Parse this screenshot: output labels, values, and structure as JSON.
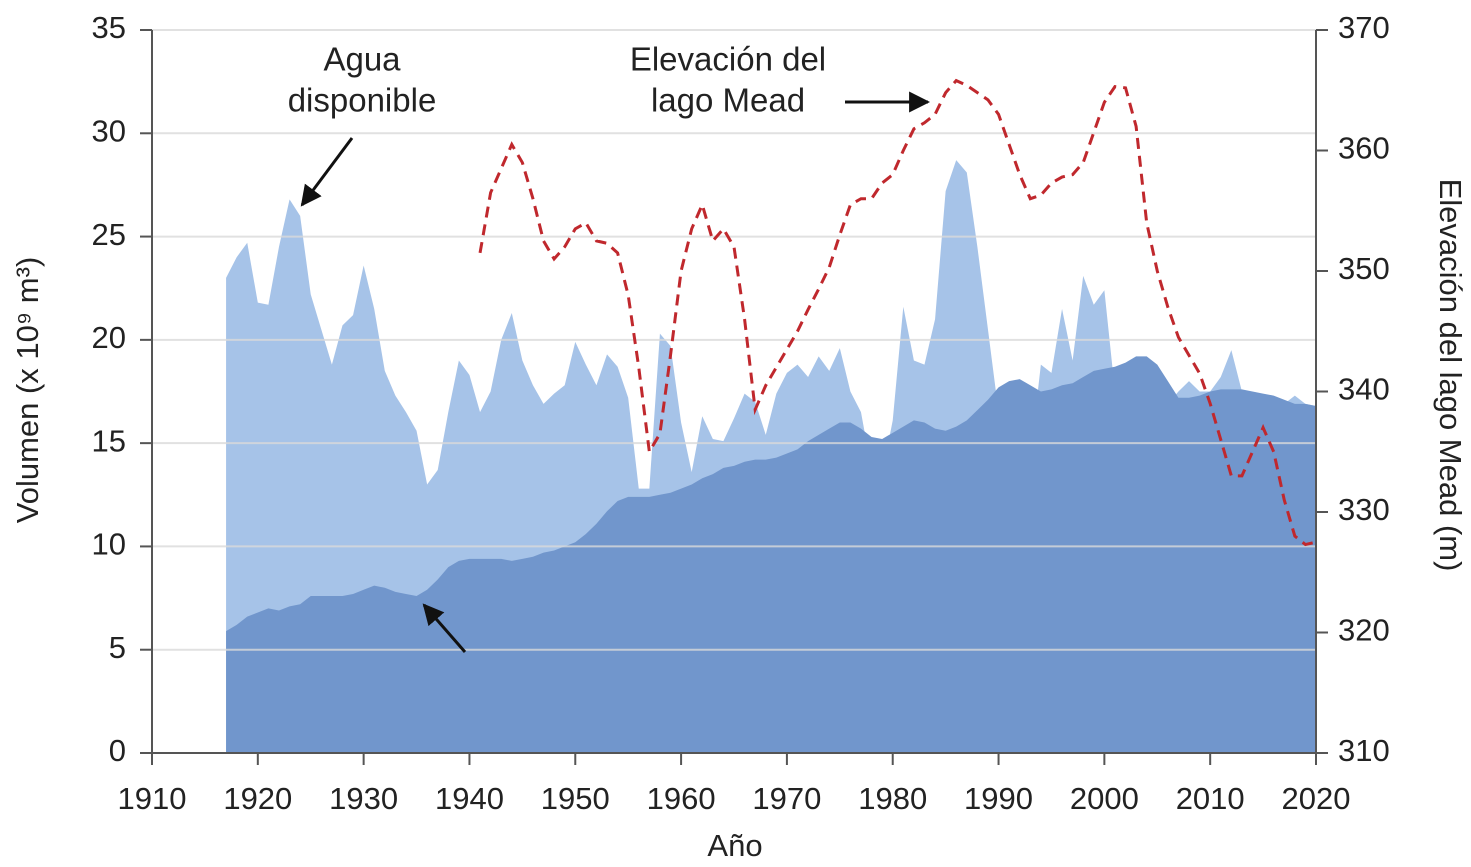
{
  "chart_data": {
    "type": "area",
    "x_label": "Año",
    "y_label": "Volumen (x 10⁹ m³)",
    "y2_label": "Elevación del lago Mead (m)",
    "annotations": [
      {
        "lines": [
          "Agua",
          "disponible"
        ]
      },
      {
        "lines": [
          "Elevación del",
          "lago Mead"
        ]
      }
    ],
    "xlim": [
      1910,
      2020
    ],
    "xticks": [
      1910,
      1920,
      1930,
      1940,
      1950,
      1960,
      1970,
      1980,
      1990,
      2000,
      2010,
      2020
    ],
    "ylim": [
      0,
      35
    ],
    "yticks": [
      0,
      5,
      10,
      15,
      20,
      25,
      30,
      35
    ],
    "y2lim": [
      310,
      370
    ],
    "y2ticks": [
      310,
      320,
      330,
      340,
      350,
      360,
      370
    ],
    "grid": true,
    "x": [
      1917,
      1918,
      1919,
      1920,
      1921,
      1922,
      1923,
      1924,
      1925,
      1926,
      1927,
      1928,
      1929,
      1930,
      1931,
      1932,
      1933,
      1934,
      1935,
      1936,
      1937,
      1938,
      1939,
      1940,
      1941,
      1942,
      1943,
      1944,
      1945,
      1946,
      1947,
      1948,
      1949,
      1950,
      1951,
      1952,
      1953,
      1954,
      1955,
      1956,
      1957,
      1958,
      1959,
      1960,
      1961,
      1962,
      1963,
      1964,
      1965,
      1966,
      1967,
      1968,
      1969,
      1970,
      1971,
      1972,
      1973,
      1974,
      1975,
      1976,
      1977,
      1978,
      1979,
      1980,
      1981,
      1982,
      1983,
      1984,
      1985,
      1986,
      1987,
      1988,
      1989,
      1990,
      1991,
      1992,
      1993,
      1994,
      1995,
      1996,
      1997,
      1998,
      1999,
      2000,
      2001,
      2002,
      2003,
      2004,
      2005,
      2006,
      2007,
      2008,
      2009,
      2010,
      2011,
      2012,
      2013,
      2014,
      2015,
      2016,
      2017,
      2018,
      2019,
      2020
    ],
    "series": [
      {
        "color": "#a6c3e8",
        "style": "area",
        "values": [
          23,
          24,
          24.7,
          21.8,
          21.7,
          24.5,
          26.8,
          26,
          22.2,
          20.5,
          18.8,
          20.7,
          21.2,
          23.6,
          21.5,
          18.5,
          17.3,
          16.5,
          15.6,
          13,
          13.7,
          16.5,
          19,
          18.3,
          16.5,
          17.5,
          20,
          21.3,
          19,
          17.8,
          16.9,
          17.4,
          17.8,
          19.9,
          18.8,
          17.8,
          19.3,
          18.7,
          17.2,
          12.8,
          12.8,
          20.3,
          19.7,
          16,
          13.6,
          16.3,
          15.2,
          15.1,
          16.2,
          17.4,
          17,
          15.4,
          17.4,
          18.4,
          18.8,
          18.2,
          19.2,
          18.5,
          19.6,
          17.5,
          16.5,
          13.7,
          13.5,
          16.1,
          21.6,
          19,
          18.8,
          21,
          27.2,
          28.7,
          28.1,
          24.5,
          20.5,
          16.5,
          13.1,
          13.5,
          14.3,
          18.8,
          18.4,
          21.5,
          19,
          23.1,
          21.7,
          22.4,
          17.5,
          15,
          11.6,
          11.6,
          11.4,
          16.9,
          17.5,
          18,
          17.5,
          17.5,
          18.2,
          19.5,
          17.5,
          15.5,
          13.4,
          15.5,
          16.9,
          17.3,
          16.9,
          16.8
        ]
      },
      {
        "color": "#7196cc",
        "style": "area",
        "values": [
          5.9,
          6.2,
          6.6,
          6.8,
          7.0,
          6.9,
          7.1,
          7.2,
          7.6,
          7.6,
          7.6,
          7.6,
          7.7,
          7.9,
          8.1,
          8.0,
          7.8,
          7.7,
          7.6,
          7.9,
          8.4,
          9.0,
          9.3,
          9.4,
          9.4,
          9.4,
          9.4,
          9.3,
          9.4,
          9.5,
          9.7,
          9.8,
          10.0,
          10.2,
          10.6,
          11.1,
          11.7,
          12.2,
          12.4,
          12.4,
          12.4,
          12.5,
          12.6,
          12.8,
          13.0,
          13.3,
          13.5,
          13.8,
          13.9,
          14.1,
          14.2,
          14.2,
          14.3,
          14.5,
          14.7,
          15.1,
          15.4,
          15.7,
          16.0,
          16.0,
          15.7,
          15.3,
          15.2,
          15.5,
          15.8,
          16.1,
          16.0,
          15.7,
          15.6,
          15.8,
          16.1,
          16.6,
          17.1,
          17.7,
          18.0,
          18.1,
          17.8,
          17.5,
          17.6,
          17.8,
          17.9,
          18.2,
          18.5,
          18.6,
          18.7,
          18.9,
          19.2,
          19.2,
          18.8,
          18.0,
          17.2,
          17.2,
          17.3,
          17.5,
          17.6,
          17.6,
          17.6,
          17.5,
          17.4,
          17.3,
          17.1,
          16.9,
          16.9,
          16.8
        ]
      },
      {
        "color": "#c0282d",
        "style": "dashed-line",
        "axis": "y2",
        "values": [
          null,
          null,
          null,
          null,
          null,
          null,
          null,
          null,
          null,
          null,
          null,
          null,
          null,
          null,
          null,
          null,
          null,
          null,
          null,
          null,
          null,
          null,
          null,
          null,
          351.5,
          356.5,
          358.5,
          360.5,
          359,
          356,
          352.5,
          351,
          352,
          353.5,
          354,
          352.5,
          352.3,
          351.5,
          348,
          342,
          335,
          336.5,
          343,
          350,
          353.5,
          355.5,
          352.5,
          353.5,
          352,
          346,
          338.5,
          340.5,
          342,
          343.5,
          345,
          346.8,
          348.5,
          350.3,
          353,
          355.5,
          356,
          356,
          357.3,
          358,
          360,
          361.8,
          362.3,
          363,
          364.8,
          365.8,
          365.4,
          364.8,
          364.2,
          363,
          360.5,
          358,
          356,
          356.3,
          357.3,
          357.8,
          358,
          359,
          361.5,
          364,
          365.3,
          365.2,
          362,
          354,
          350,
          347,
          344.5,
          343,
          341.5,
          339,
          336,
          333,
          333,
          335,
          337,
          335,
          331,
          328,
          327.3,
          327.5
        ]
      }
    ]
  }
}
